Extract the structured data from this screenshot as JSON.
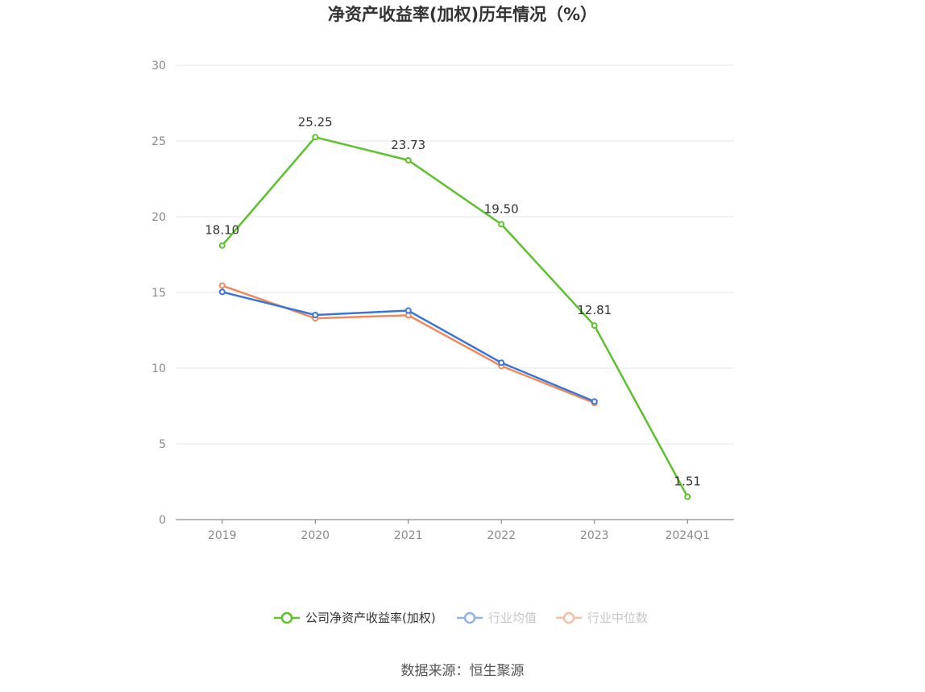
{
  "chart_data": {
    "type": "line",
    "title": "净资产收益率(加权)历年情况（%）",
    "categories": [
      "2019",
      "2020",
      "2021",
      "2022",
      "2023",
      "2024Q1"
    ],
    "ylim": [
      0,
      30
    ],
    "yticks": [
      "0",
      "5",
      "10",
      "15",
      "20",
      "25",
      "30"
    ],
    "grid": true,
    "legend_position": "bottom",
    "series": [
      {
        "name": "公司净资产收益率(加权)",
        "color": "#5cc22c",
        "values": [
          18.1,
          25.25,
          23.73,
          19.5,
          12.81,
          1.51
        ],
        "labels": [
          "18.10",
          "25.25",
          "23.73",
          "19.50",
          "12.81",
          "1.51"
        ]
      },
      {
        "name": "行业均值",
        "color": "#3a76d8",
        "values": [
          15.03,
          13.51,
          13.8,
          10.36,
          7.8,
          null
        ]
      },
      {
        "name": "行业中位数",
        "color": "#f08a5d",
        "values": [
          15.45,
          13.29,
          13.49,
          10.14,
          7.7,
          null
        ]
      }
    ],
    "source": "数据来源：恒生聚源"
  }
}
